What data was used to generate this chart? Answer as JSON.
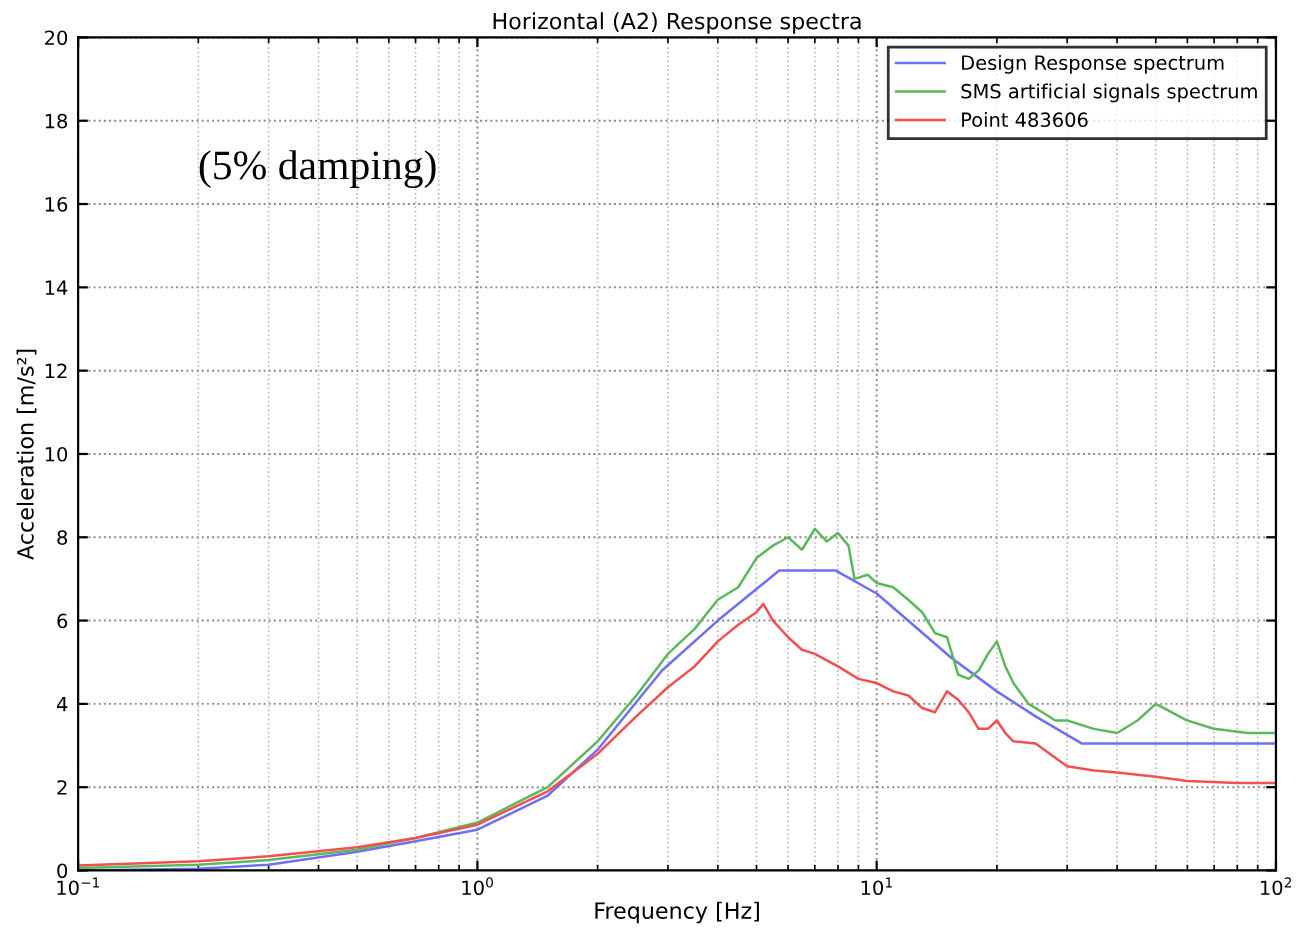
{
  "chart_data": {
    "type": "line",
    "title": "Horizontal (A2) Response spectra",
    "xlabel": "Frequency [Hz]",
    "ylabel": "Acceleration [m/s²]",
    "annotations": [
      "(5% damping)"
    ],
    "log": "x",
    "xlim": [
      0.1,
      100
    ],
    "ylim": [
      0,
      20
    ],
    "xticks": [
      {
        "value": 0.1,
        "label": "10$^{−1}$"
      },
      {
        "value": 1,
        "label": "10$^{0}$"
      },
      {
        "value": 10,
        "label": "10$^{1}$"
      },
      {
        "value": 100,
        "label": "10$^{2}$"
      }
    ],
    "yticks": [
      0,
      2,
      4,
      6,
      8,
      10,
      12,
      14,
      16,
      18,
      20
    ],
    "grid": true,
    "legend": "top right",
    "marker": "none",
    "line_style": "solid",
    "series": [
      {
        "name": "Design Response spectrum",
        "color": "#6f6ff5",
        "x": [
          0.1,
          0.2,
          0.3,
          0.5,
          0.7,
          1,
          1.5,
          2,
          2.9,
          4,
          5.7,
          7.9,
          10,
          15.4,
          20,
          25,
          32.6,
          50,
          100
        ],
        "values": [
          0.0,
          0.04,
          0.14,
          0.45,
          0.7,
          0.98,
          1.8,
          2.9,
          4.8,
          6.0,
          7.2,
          7.2,
          6.65,
          5.1,
          4.3,
          3.7,
          3.05,
          3.05,
          3.05
        ]
      },
      {
        "name": "SMS artificial signals spectrum",
        "color": "#5cb85c",
        "x": [
          0.1,
          0.2,
          0.3,
          0.5,
          0.7,
          1,
          1.5,
          2,
          2.5,
          3,
          3.5,
          4,
          4.5,
          5,
          5.5,
          6,
          6.5,
          7,
          7.5,
          8,
          8.5,
          8.8,
          9.5,
          10,
          11,
          12,
          13,
          14,
          15,
          16,
          17,
          18,
          19,
          20,
          21,
          22,
          24,
          26,
          28,
          30,
          35,
          40,
          45,
          50,
          60,
          70,
          85,
          100
        ],
        "values": [
          0.06,
          0.14,
          0.25,
          0.5,
          0.78,
          1.15,
          2.0,
          3.1,
          4.2,
          5.2,
          5.8,
          6.5,
          6.8,
          7.5,
          7.8,
          8.0,
          7.7,
          8.2,
          7.9,
          8.1,
          7.8,
          7.0,
          7.1,
          6.9,
          6.8,
          6.5,
          6.2,
          5.7,
          5.6,
          4.7,
          4.6,
          4.8,
          5.2,
          5.5,
          4.9,
          4.5,
          4.0,
          3.8,
          3.6,
          3.6,
          3.4,
          3.3,
          3.6,
          4.0,
          3.6,
          3.4,
          3.3,
          3.3
        ]
      },
      {
        "name": "Point 483606",
        "color": "#f05050",
        "x": [
          0.1,
          0.2,
          0.3,
          0.5,
          0.7,
          1,
          1.5,
          2,
          2.5,
          3,
          3.5,
          4,
          4.5,
          5,
          5.2,
          5.5,
          6,
          6.5,
          7,
          8,
          9,
          10,
          11,
          12,
          13,
          14,
          15,
          16,
          17,
          18,
          19,
          20,
          21,
          22,
          25,
          30,
          35,
          40,
          50,
          60,
          80,
          100
        ],
        "values": [
          0.12,
          0.22,
          0.34,
          0.56,
          0.78,
          1.1,
          1.9,
          2.8,
          3.7,
          4.4,
          4.9,
          5.5,
          5.9,
          6.2,
          6.4,
          6.0,
          5.6,
          5.3,
          5.2,
          4.9,
          4.6,
          4.5,
          4.3,
          4.2,
          3.9,
          3.8,
          4.3,
          4.1,
          3.8,
          3.4,
          3.4,
          3.6,
          3.3,
          3.1,
          3.05,
          2.5,
          2.4,
          2.35,
          2.25,
          2.15,
          2.1,
          2.1
        ]
      }
    ]
  }
}
